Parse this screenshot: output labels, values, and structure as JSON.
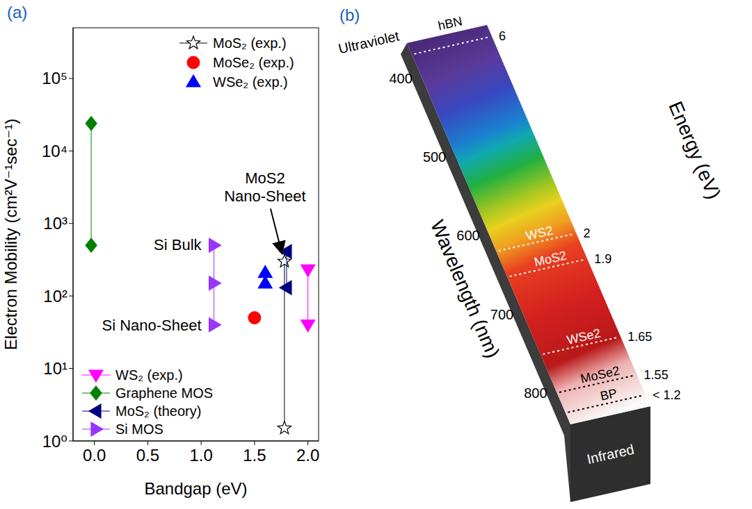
{
  "chart_data": [
    {
      "type": "scatter",
      "panel_label": "(a)",
      "x_label": "Bandgap (eV)",
      "y_label": "Electron Mobility (cm²V⁻¹sec⁻¹)",
      "xlim": [
        -0.2,
        2.1
      ],
      "xticks": [
        {
          "value": 0,
          "label": "0.0"
        },
        {
          "value": 0.5,
          "label": "0.5"
        },
        {
          "value": 1,
          "label": "1.0"
        },
        {
          "value": 1.5,
          "label": "1.5"
        },
        {
          "value": 2,
          "label": "2.0"
        }
      ],
      "ylim": [
        1,
        500000
      ],
      "yticks": [
        {
          "value": 1,
          "label": "10⁰"
        },
        {
          "value": 10,
          "label": "10¹"
        },
        {
          "value": 100,
          "label": "10²"
        },
        {
          "value": 1000,
          "label": "10³"
        },
        {
          "value": 10000,
          "label": "10⁴"
        },
        {
          "value": 100000,
          "label": "10⁵"
        }
      ],
      "log": "y",
      "grid": false,
      "legend": "inside",
      "series": [
        {
          "name": "MoS₂ (exp.)",
          "color": "#000000",
          "marker": "star",
          "line_style": "solid",
          "x": [
            1.78,
            1.78
          ],
          "values": [
            300,
            1.5
          ]
        },
        {
          "name": "MoSe₂ (exp.)",
          "color": "#ff0000",
          "marker": "circle",
          "line_style": "none",
          "x": [
            1.5
          ],
          "values": [
            50
          ]
        },
        {
          "name": "WSe₂ (exp.)",
          "color": "#0000ff",
          "marker": "triangle-up",
          "line_style": "none",
          "x": [
            1.6,
            1.6
          ],
          "values": [
            210,
            150
          ]
        },
        {
          "name": "WS₂ (exp.)",
          "color": "#ff00ff",
          "marker": "triangle-down",
          "line_style": "solid",
          "x": [
            2.0,
            2.0
          ],
          "values": [
            230,
            40
          ]
        },
        {
          "name": "Graphene MOS",
          "color": "#008000",
          "marker": "diamond",
          "line_style": "solid",
          "x": [
            -0.03,
            -0.03
          ],
          "values": [
            24000,
            500
          ]
        },
        {
          "name": "MoS₂ (theory)",
          "color": "#000080",
          "marker": "triangle-left",
          "line_style": "solid",
          "x": [
            1.8,
            1.8
          ],
          "values": [
            410,
            130
          ]
        },
        {
          "name": "Si MOS",
          "color": "#9933ff",
          "marker": "triangle-right",
          "line_style": "solid",
          "x": [
            1.12,
            1.12,
            1.12
          ],
          "values": [
            500,
            150,
            40
          ]
        }
      ],
      "annotations": [
        {
          "text": "MoS2 Nano-Sheet"
        },
        {
          "text": "Si Bulk"
        },
        {
          "text": "Si Nano-Sheet"
        }
      ]
    },
    {
      "type": "spectrum",
      "panel_label": "(b)",
      "x_label": "Wavelength (nm)",
      "y_label": "Energy (eV)",
      "xlim": [
        355,
        840
      ],
      "xticks": [
        400,
        500,
        600,
        700,
        800
      ],
      "top_label": "Ultraviolet",
      "bottom_label": "Infrared",
      "materials": [
        {
          "name": "hBN",
          "energy": 6
        },
        {
          "name": "WS2",
          "energy": 2
        },
        {
          "name": "MoS2",
          "energy": 1.9
        },
        {
          "name": "WSe2",
          "energy": 1.65
        },
        {
          "name": "MoSe2",
          "energy": 1.55
        },
        {
          "name": "BP",
          "energy": 1.2,
          "energy_label": "< 1.2"
        }
      ]
    }
  ]
}
